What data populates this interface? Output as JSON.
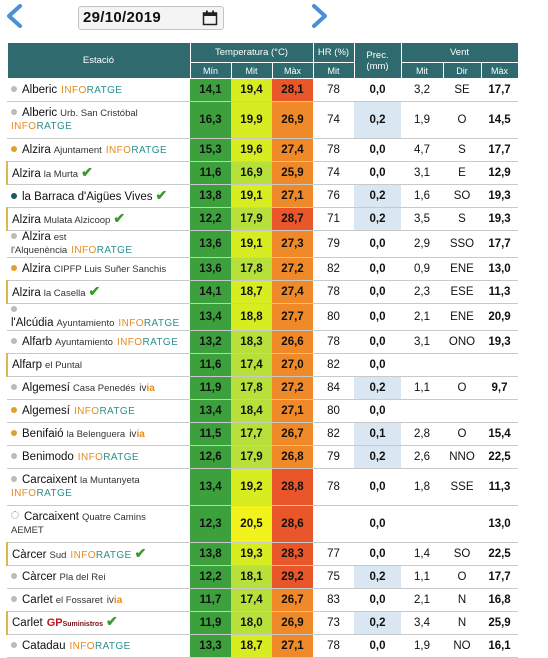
{
  "date": "29/10/2019",
  "headers": {
    "station": "Estació",
    "temperature": "Temperatura (°C)",
    "humidity": "HR (%)",
    "rain": "Prec. (mm)",
    "wind": "Vent",
    "t_min": "Mín",
    "t_mit": "Mit",
    "t_max": "Màx",
    "hr_mit": "Mit",
    "w_mit": "Mit",
    "w_dir": "Dir",
    "w_max": "Màx"
  },
  "colors": {
    "header": "#2f6b6e",
    "min": "#3ca13c",
    "mit_yellowgreen": "#c8e62f",
    "mit_yellow": "#f2f21d",
    "max_orange": "#f08a28",
    "max_red": "#e8562a",
    "rain_blue": "#dbe6f3"
  },
  "stations": [
    {
      "name": "Alberic",
      "sub": "",
      "tag": "INFORATGE",
      "dot": "#bbbbbb",
      "min": "14,1",
      "mit": "19,4",
      "max": "28,1",
      "hr": "78",
      "rain": "0,0",
      "blue": false,
      "wmit": "3,2",
      "dir": "SE",
      "wmax": "17,7"
    },
    {
      "name": "Alberic",
      "sub": "Urb. San Cristóbal",
      "tag": "INFORATGE",
      "dot": "#bbbbbb",
      "tall": true,
      "min": "16,3",
      "mit": "19,9",
      "max": "26,9",
      "hr": "74",
      "rain": "0,2",
      "blue": true,
      "wmit": "1,9",
      "dir": "O",
      "wmax": "14,5"
    },
    {
      "name": "Alzira",
      "sub": "Ajuntament",
      "tag": "INFORATGE",
      "dot": "#e0a030",
      "min": "15,3",
      "mit": "19,6",
      "max": "27,4",
      "hr": "78",
      "rain": "0,0",
      "blue": false,
      "wmit": "4,7",
      "dir": "S",
      "wmax": "17,7"
    },
    {
      "name": "Alzira",
      "sub": "la Murta",
      "check": true,
      "mark": true,
      "dot": "",
      "min": "11,6",
      "mit": "16,9",
      "max": "25,9",
      "hr": "74",
      "rain": "0,0",
      "blue": false,
      "wmit": "3,1",
      "dir": "E",
      "wmax": "12,9"
    },
    {
      "name": "la Barraca d'Aigües Vives",
      "sub": "",
      "check": true,
      "dot": "#1a5a5a",
      "min": "13,8",
      "mit": "19,1",
      "max": "27,1",
      "hr": "76",
      "rain": "0,2",
      "blue": true,
      "wmit": "1,6",
      "dir": "SO",
      "wmax": "19,3"
    },
    {
      "name": "Alzira",
      "sub": "Mulata Alzicoop",
      "check": true,
      "mark": true,
      "dot": "",
      "min": "12,2",
      "mit": "17,9",
      "max": "28,7",
      "hr": "71",
      "rain": "0,2",
      "blue": true,
      "wmit": "3,5",
      "dir": "S",
      "wmax": "19,3"
    },
    {
      "name": "Alzira",
      "sub": "est l'Alquenència",
      "tag": "INFORATGE",
      "dot": "#bbbbbb",
      "min": "13,6",
      "mit": "19,1",
      "max": "27,3",
      "hr": "79",
      "rain": "0,0",
      "blue": false,
      "wmit": "2,9",
      "dir": "SSO",
      "wmax": "17,7"
    },
    {
      "name": "Alzira",
      "sub": "CIPFP Luis Suñer Sanchis",
      "dot": "#e0a030",
      "min": "13,6",
      "mit": "17,8",
      "max": "27,2",
      "hr": "82",
      "rain": "0,0",
      "blue": false,
      "wmit": "0,9",
      "dir": "ENE",
      "wmax": "13,0"
    },
    {
      "name": "Alzira",
      "sub": "la Casella",
      "check": true,
      "mark": true,
      "dot": "",
      "min": "14,1",
      "mit": "18,7",
      "max": "27,4",
      "hr": "78",
      "rain": "0,0",
      "blue": false,
      "wmit": "2,3",
      "dir": "ESE",
      "wmax": "11,3"
    },
    {
      "name": "l'Alcúdia",
      "sub": "Ayuntamiento",
      "tag": "INFORATGE",
      "dot": "#bbbbbb",
      "min": "13,4",
      "mit": "18,8",
      "max": "27,7",
      "hr": "80",
      "rain": "0,0",
      "blue": false,
      "wmit": "2,1",
      "dir": "ENE",
      "wmax": "20,9"
    },
    {
      "name": "Alfarb",
      "sub": "Ayuntamiento",
      "tag": "INFORATGE",
      "dot": "#bbbbbb",
      "min": "13,2",
      "mit": "18,3",
      "max": "26,6",
      "hr": "78",
      "rain": "0,0",
      "blue": false,
      "wmit": "3,1",
      "dir": "ONO",
      "wmax": "19,3"
    },
    {
      "name": "Alfarp",
      "sub": "el Puntal",
      "mark": true,
      "dot": "",
      "min": "11,6",
      "mit": "17,4",
      "max": "27,0",
      "hr": "82",
      "rain": "0,0",
      "blue": false,
      "wmit": "",
      "dir": "",
      "wmax": ""
    },
    {
      "name": "Algemesí",
      "sub": "Casa Penedés",
      "ivia": true,
      "dot": "#bbbbbb",
      "min": "11,9",
      "mit": "17,8",
      "max": "27,2",
      "hr": "84",
      "rain": "0,2",
      "blue": true,
      "wmit": "1,1",
      "dir": "O",
      "wmax": "9,7"
    },
    {
      "name": "Algemesí",
      "sub": "",
      "tag": "INFORATGE",
      "dot": "#e0a030",
      "min": "13,4",
      "mit": "18,4",
      "max": "27,1",
      "hr": "80",
      "rain": "0,0",
      "blue": false,
      "wmit": "",
      "dir": "",
      "wmax": ""
    },
    {
      "name": "Benifaió",
      "sub": "la Belenguera",
      "ivia": true,
      "dot": "#e0a030",
      "min": "11,5",
      "mit": "17,7",
      "max": "26,7",
      "hr": "82",
      "rain": "0,1",
      "blue": true,
      "wmit": "2,8",
      "dir": "O",
      "wmax": "15,4"
    },
    {
      "name": "Benimodo",
      "sub": "",
      "tag": "INFORATGE",
      "dot": "#bbbbbb",
      "min": "12,6",
      "mit": "17,9",
      "max": "26,8",
      "hr": "79",
      "rain": "0,2",
      "blue": true,
      "wmit": "2,6",
      "dir": "NNO",
      "wmax": "22,5"
    },
    {
      "name": "Carcaixent",
      "sub": "la Muntanyeta",
      "tag": "INFORATGE",
      "dot": "#bbbbbb",
      "tall": true,
      "min": "13,4",
      "mit": "19,2",
      "max": "28,8",
      "hr": "78",
      "rain": "0,0",
      "blue": false,
      "wmit": "1,8",
      "dir": "SSE",
      "wmax": "11,3"
    },
    {
      "name": "Carcaixent",
      "sub": "Quatre Camins",
      "aemet": "AEMET",
      "dot": "#ffffff",
      "tall": true,
      "min": "12,3",
      "mit": "20,5",
      "max": "28,6",
      "hr": "",
      "rain": "0,0",
      "blue": false,
      "wmit": "",
      "dir": "",
      "wmax": "13,0"
    },
    {
      "name": "Càrcer",
      "sub": "Sud",
      "tag": "INFORATGE",
      "check": true,
      "mark": true,
      "dot": "",
      "min": "13,8",
      "mit": "19,3",
      "max": "28,3",
      "hr": "77",
      "rain": "0,0",
      "blue": false,
      "wmit": "1,4",
      "dir": "SO",
      "wmax": "22,5"
    },
    {
      "name": "Càrcer",
      "sub": "Pla del Rei",
      "dot": "#bbbbbb",
      "min": "12,2",
      "mit": "18,1",
      "max": "29,2",
      "hr": "75",
      "rain": "0,2",
      "blue": true,
      "wmit": "1,1",
      "dir": "O",
      "wmax": "17,7"
    },
    {
      "name": "Carlet",
      "sub": "el Fossaret",
      "ivia": true,
      "dot": "#bbbbbb",
      "min": "11,7",
      "mit": "17,4",
      "max": "26,7",
      "hr": "83",
      "rain": "0,0",
      "blue": false,
      "wmit": "2,1",
      "dir": "N",
      "wmax": "16,8"
    },
    {
      "name": "Carlet",
      "sub": "",
      "gp": true,
      "check": true,
      "mark": true,
      "dot": "",
      "min": "11,9",
      "mit": "18,0",
      "max": "26,9",
      "hr": "73",
      "rain": "0,2",
      "blue": true,
      "wmit": "3,4",
      "dir": "N",
      "wmax": "25,9"
    },
    {
      "name": "Catadau",
      "sub": "",
      "tag": "INFORATGE",
      "dot": "#bbbbbb",
      "min": "13,3",
      "mit": "18,7",
      "max": "27,1",
      "hr": "78",
      "rain": "0,0",
      "blue": false,
      "wmit": "1,9",
      "dir": "NO",
      "wmax": "16,1"
    }
  ],
  "brand_labels": {
    "ivia_prefix": "iv",
    "ivia_suffix": "ia",
    "gp_main": "GP",
    "gp_small": "Suministros"
  }
}
